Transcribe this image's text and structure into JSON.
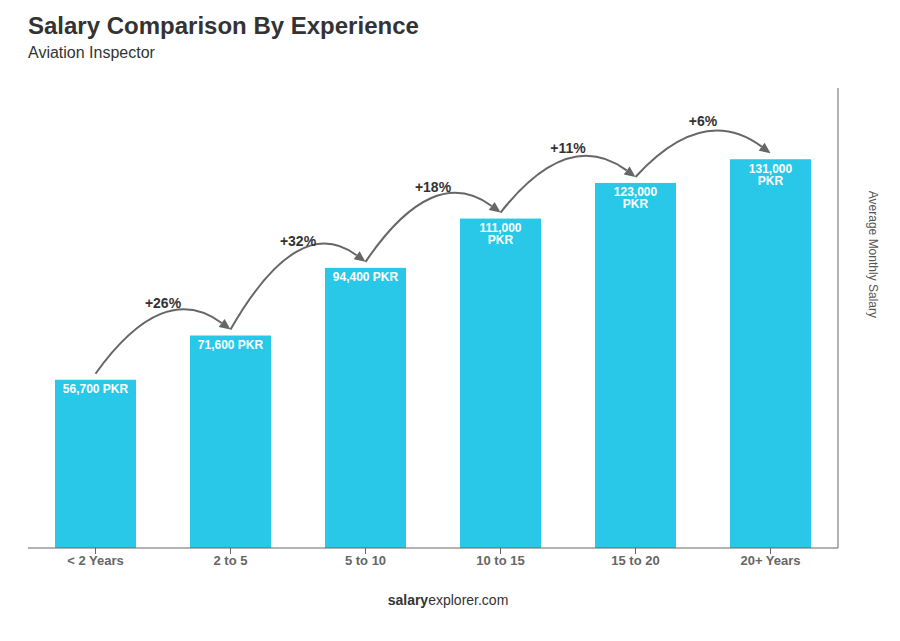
{
  "chart_data": {
    "type": "bar",
    "title": "Salary Comparison By Experience",
    "subtitle": "Aviation Inspector",
    "categories": [
      "< 2 Years",
      "2 to 5",
      "5 to 10",
      "10 to 15",
      "15 to 20",
      "20+ Years"
    ],
    "values": [
      56700,
      71600,
      94400,
      111000,
      123000,
      131000
    ],
    "value_labels": [
      "56,700 PKR",
      "71,600 PKR",
      "94,400 PKR",
      "111,000 PKR",
      "123,000 PKR",
      "131,000 PKR"
    ],
    "annotations": [
      "+26%",
      "+32%",
      "+18%",
      "+11%",
      "+6%"
    ],
    "color": "#29c8e8",
    "ylabel": "Average Monthly Salary",
    "ylim": [
      0,
      155000
    ],
    "tick_labels": "x",
    "grid": false,
    "watermark": [
      "salary",
      "explorer.com"
    ]
  }
}
